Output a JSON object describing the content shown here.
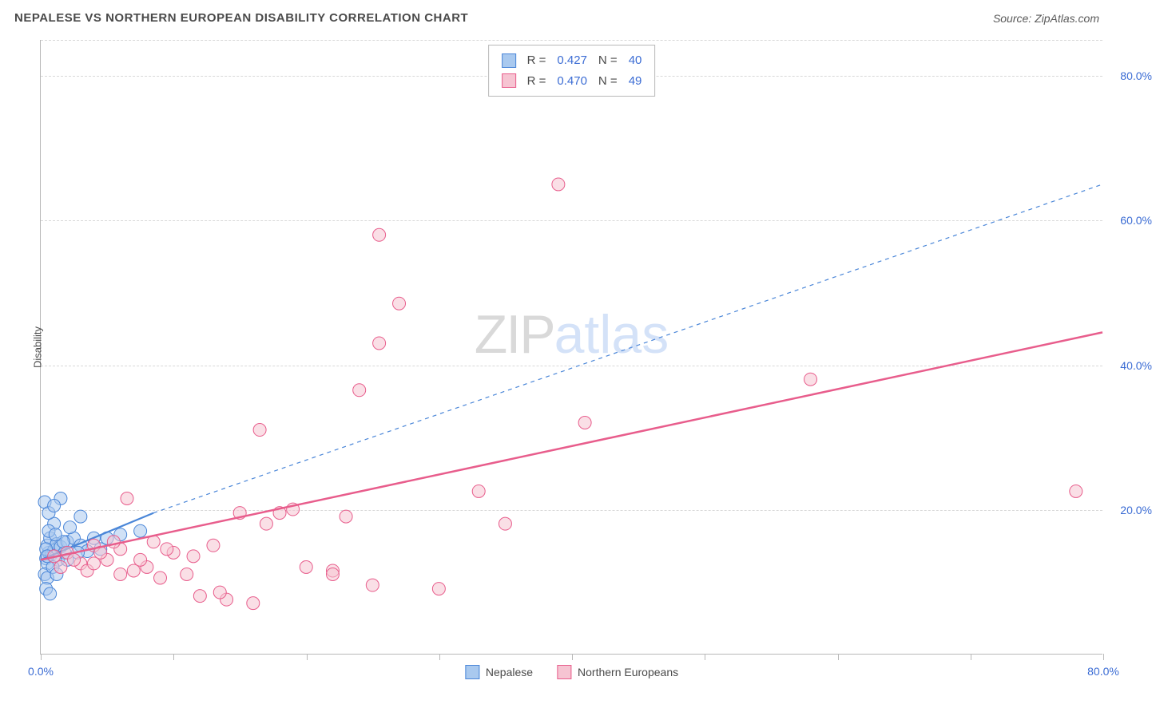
{
  "title": "NEPALESE VS NORTHERN EUROPEAN DISABILITY CORRELATION CHART",
  "source": "Source: ZipAtlas.com",
  "watermark": {
    "left": "ZIP",
    "right": "atlas"
  },
  "y_axis_title": "Disability",
  "chart": {
    "type": "scatter",
    "xlim": [
      0,
      80
    ],
    "ylim": [
      0,
      85
    ],
    "x_ticks": [
      0,
      10,
      20,
      30,
      40,
      50,
      60,
      70,
      80
    ],
    "x_tick_labels": {
      "0": "0.0%",
      "80": "80.0%"
    },
    "y_gridlines": [
      20,
      40,
      60,
      80,
      85
    ],
    "y_tick_labels": {
      "20": "20.0%",
      "40": "40.0%",
      "60": "60.0%",
      "80": "80.0%"
    },
    "background_color": "#ffffff",
    "grid_color": "#d8d8d8",
    "axis_color": "#b8b8b8",
    "tick_label_color": "#3b6cd4",
    "marker_radius": 8,
    "marker_opacity": 0.55,
    "series": [
      {
        "name": "Nepalese",
        "fill": "#a9c9ef",
        "stroke": "#4a86d8",
        "r_value": "0.427",
        "n_value": "40",
        "points": [
          [
            0.4,
            13.2
          ],
          [
            0.6,
            14.0
          ],
          [
            0.5,
            12.5
          ],
          [
            0.8,
            13.8
          ],
          [
            0.3,
            11.0
          ],
          [
            0.5,
            15.0
          ],
          [
            1.0,
            14.3
          ],
          [
            0.7,
            16.0
          ],
          [
            1.2,
            15.2
          ],
          [
            0.5,
            10.5
          ],
          [
            0.4,
            9.0
          ],
          [
            1.5,
            14.8
          ],
          [
            1.0,
            18.0
          ],
          [
            2.0,
            15.5
          ],
          [
            1.3,
            13.0
          ],
          [
            2.5,
            16.0
          ],
          [
            1.8,
            14.0
          ],
          [
            0.3,
            21.0
          ],
          [
            0.6,
            19.5
          ],
          [
            3.0,
            15.0
          ],
          [
            3.5,
            14.2
          ],
          [
            2.2,
            17.5
          ],
          [
            4.0,
            16.0
          ],
          [
            1.5,
            21.5
          ],
          [
            0.7,
            8.3
          ],
          [
            4.5,
            14.5
          ],
          [
            1.0,
            20.5
          ],
          [
            5.0,
            16.0
          ],
          [
            6.0,
            16.5
          ],
          [
            3.0,
            19.0
          ],
          [
            7.5,
            17.0
          ],
          [
            2.0,
            13.0
          ],
          [
            0.9,
            12.0
          ],
          [
            1.2,
            11.0
          ],
          [
            0.4,
            14.5
          ],
          [
            1.7,
            15.5
          ],
          [
            0.6,
            17.0
          ],
          [
            2.8,
            14.0
          ],
          [
            0.5,
            13.5
          ],
          [
            1.1,
            16.5
          ]
        ],
        "trend": {
          "x1": 0,
          "y1": 13.0,
          "x2": 8.5,
          "y2": 19.5,
          "width": 2.2,
          "dash": "none"
        },
        "trend_ext": {
          "x1": 8.5,
          "y1": 19.5,
          "x2": 80,
          "y2": 65.0,
          "width": 1.2,
          "dash": "5,5"
        }
      },
      {
        "name": "Northern Europeans",
        "fill": "#f6c4d2",
        "stroke": "#e85d8c",
        "r_value": "0.470",
        "n_value": "49",
        "points": [
          [
            1.0,
            13.5
          ],
          [
            2.0,
            14.0
          ],
          [
            3.0,
            12.5
          ],
          [
            4.0,
            15.0
          ],
          [
            5.0,
            13.0
          ],
          [
            6.0,
            14.5
          ],
          [
            7.0,
            11.5
          ],
          [
            8.0,
            12.0
          ],
          [
            9.0,
            10.5
          ],
          [
            6.5,
            21.5
          ],
          [
            11.0,
            11.0
          ],
          [
            12.0,
            8.0
          ],
          [
            13.0,
            15.0
          ],
          [
            14.0,
            7.5
          ],
          [
            15.0,
            19.5
          ],
          [
            16.0,
            7.0
          ],
          [
            17.0,
            18.0
          ],
          [
            16.5,
            31.0
          ],
          [
            18.0,
            19.5
          ],
          [
            19.0,
            20.0
          ],
          [
            20.0,
            12.0
          ],
          [
            22.0,
            11.5
          ],
          [
            23.0,
            19.0
          ],
          [
            24.0,
            36.5
          ],
          [
            25.0,
            9.5
          ],
          [
            25.5,
            43.0
          ],
          [
            27.0,
            48.5
          ],
          [
            25.5,
            58.0
          ],
          [
            22.0,
            11.0
          ],
          [
            30.0,
            9.0
          ],
          [
            33.0,
            22.5
          ],
          [
            35.0,
            18.0
          ],
          [
            39.0,
            65.0
          ],
          [
            41.0,
            32.0
          ],
          [
            58.0,
            38.0
          ],
          [
            78.0,
            22.5
          ],
          [
            2.5,
            13.0
          ],
          [
            3.5,
            11.5
          ],
          [
            4.5,
            14.0
          ],
          [
            5.5,
            15.5
          ],
          [
            1.5,
            12.0
          ],
          [
            7.5,
            13.0
          ],
          [
            10.0,
            14.0
          ],
          [
            8.5,
            15.5
          ],
          [
            11.5,
            13.5
          ],
          [
            13.5,
            8.5
          ],
          [
            6.0,
            11.0
          ],
          [
            9.5,
            14.5
          ],
          [
            4.0,
            12.5
          ]
        ],
        "trend": {
          "x1": 0,
          "y1": 13.0,
          "x2": 80,
          "y2": 44.5,
          "width": 2.5,
          "dash": "none"
        }
      }
    ]
  },
  "legend": {
    "items": [
      {
        "label": "Nepalese",
        "fill": "#a9c9ef",
        "stroke": "#4a86d8"
      },
      {
        "label": "Northern Europeans",
        "fill": "#f6c4d2",
        "stroke": "#e85d8c"
      }
    ]
  }
}
